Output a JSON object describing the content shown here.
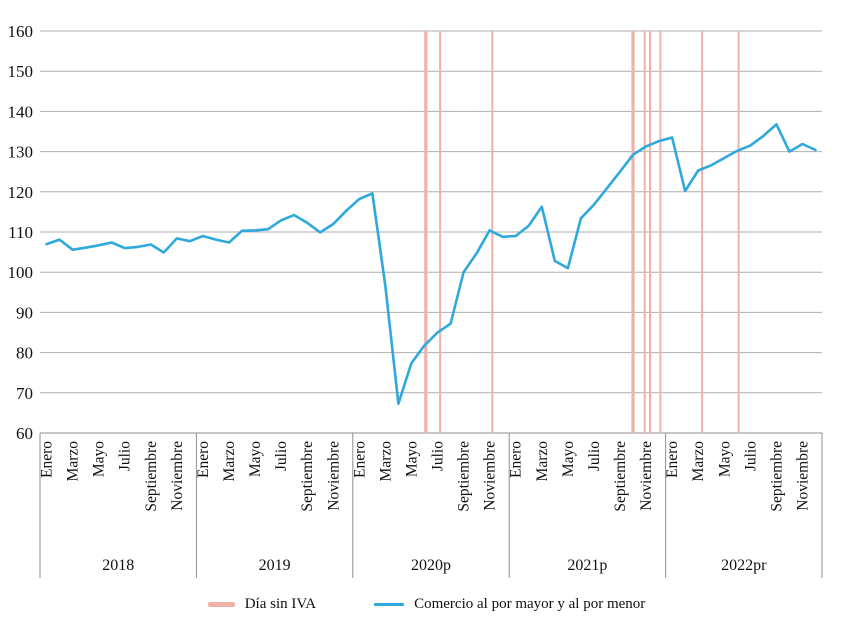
{
  "chart_data": {
    "type": "line",
    "title": "",
    "grid": "horizontal",
    "y_axis": {
      "min": 60,
      "max": 160,
      "step": 10,
      "tick_labels": [
        "60",
        "70",
        "80",
        "90",
        "100",
        "110",
        "120",
        "130",
        "140",
        "150",
        "160"
      ]
    },
    "x_axis": {
      "visible_month_labels": [
        "Enero",
        "Marzo",
        "Mayo",
        "Julio",
        "Septiembre",
        "Noviembre"
      ],
      "year_groups": [
        "2018",
        "2019",
        "2020p",
        "2021p",
        "2022pr"
      ],
      "months_per_year": 12,
      "start": "Enero 2018"
    },
    "series": [
      {
        "name": "Comercio al por mayor y al por menor",
        "color": "#2FA9DC",
        "values": [
          107.0,
          108.1,
          105.6,
          106.1,
          106.7,
          107.4,
          106.0,
          106.3,
          106.9,
          104.9,
          108.4,
          107.7,
          109.0,
          108.1,
          107.4,
          110.3,
          110.4,
          110.7,
          112.9,
          114.2,
          112.3,
          109.9,
          112.0,
          115.3,
          118.2,
          119.6,
          96.5,
          67.3,
          77.4,
          81.8,
          85.0,
          87.2,
          100.0,
          104.7,
          110.4,
          108.8,
          109.0,
          111.6,
          116.3,
          102.8,
          101.0,
          113.4,
          116.8,
          120.9,
          125.0,
          129.2,
          131.3,
          132.6,
          133.5,
          120.2,
          125.3,
          126.6,
          128.4,
          130.2,
          131.5,
          133.9,
          136.8,
          130.0,
          131.9,
          130.4
        ]
      }
    ],
    "event_lines": {
      "name": "Día sin IVA",
      "color": "#F2B1A8",
      "month_positions": [
        29.1,
        30.2,
        34.2,
        45.0,
        45.9,
        46.3,
        47.1,
        50.3,
        53.1
      ],
      "line_widths": [
        3.2,
        2.0,
        2.0,
        3.2,
        2.0,
        2.0,
        2.0,
        2.0,
        2.0
      ]
    },
    "legend": {
      "position": "bottom-center",
      "items": [
        {
          "label": "Día sin IVA",
          "color": "#F2B1A8"
        },
        {
          "label": "Comercio al por mayor y al por menor",
          "color": "#2FA9DC"
        }
      ]
    },
    "colors": {
      "gridline": "#AFAFAF",
      "axis_line": "#8F8F8F",
      "text": "#111111"
    }
  }
}
